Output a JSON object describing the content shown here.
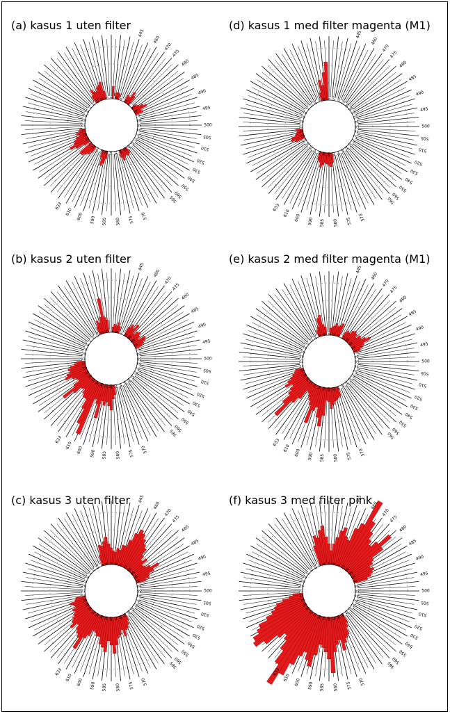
{
  "chart_data": [
    {
      "type": "polar-bar",
      "title": "(a) kasus 1 uten filter",
      "tick_labels": [
        "445",
        "460",
        "470",
        "475",
        "480",
        "485",
        "490",
        "495",
        "500",
        "505",
        "510",
        "520",
        "530",
        "540",
        "550",
        "560",
        "565",
        "570",
        "575",
        "580",
        "585",
        "590",
        "600",
        "610",
        "633"
      ],
      "inner_labels": [
        "72",
        "68",
        "66",
        "64",
        "62",
        "60",
        "58",
        "56",
        "54",
        "52",
        "50",
        "48",
        "46",
        "44",
        "42",
        "40",
        "38",
        "36",
        "34",
        "32",
        "30",
        "28",
        "26",
        "24",
        "22",
        "20",
        "18",
        "16",
        "14",
        "12",
        "10",
        "8",
        "6",
        "4",
        "2",
        "0"
      ],
      "values": [
        0,
        18,
        0,
        9,
        10,
        9,
        0,
        0,
        0,
        0,
        12,
        10,
        20,
        15,
        0,
        0,
        0,
        8,
        10,
        16,
        20,
        10,
        12,
        0,
        0,
        0,
        0,
        0,
        0,
        0,
        0,
        0,
        0,
        0,
        0,
        0,
        0,
        0,
        0,
        0,
        0,
        0,
        0,
        0,
        0,
        0,
        0,
        0,
        0,
        10,
        12,
        10,
        11,
        16,
        11,
        0,
        0,
        0,
        0,
        0,
        0,
        0,
        0,
        11,
        18,
        22,
        10,
        0,
        0,
        0,
        0,
        0,
        10,
        15,
        18,
        22,
        22,
        0,
        10,
        22,
        30,
        22,
        19,
        16,
        10,
        14,
        10,
        8,
        0,
        0,
        0,
        0,
        0,
        0,
        0,
        0,
        0,
        0,
        0,
        0,
        0,
        0,
        0,
        0,
        0,
        0,
        0,
        0,
        0,
        12,
        20,
        16,
        14,
        20,
        22,
        26,
        12,
        0
      ]
    },
    {
      "type": "polar-bar",
      "title": "(d) kasus 1 med filter magenta (M1)",
      "tick_labels": [
        "445",
        "460",
        "470",
        "475",
        "480",
        "485",
        "490",
        "495",
        "500",
        "505",
        "510",
        "520",
        "530",
        "540",
        "550",
        "560",
        "565",
        "570",
        "575",
        "580",
        "585",
        "590",
        "600",
        "610",
        "633"
      ],
      "inner_labels": [
        "72",
        "68",
        "66",
        "64",
        "62",
        "60",
        "58",
        "56",
        "54",
        "52",
        "50",
        "48",
        "46",
        "44",
        "42",
        "40",
        "38",
        "36",
        "34",
        "32",
        "30",
        "28",
        "26",
        "24",
        "22",
        "20",
        "18",
        "16",
        "14",
        "12",
        "10",
        "8",
        "6",
        "4",
        "2",
        "0"
      ],
      "values": [
        0,
        0,
        0,
        0,
        0,
        0,
        0,
        0,
        0,
        0,
        0,
        0,
        0,
        0,
        0,
        0,
        0,
        0,
        0,
        0,
        0,
        0,
        0,
        0,
        0,
        0,
        0,
        0,
        0,
        0,
        0,
        0,
        0,
        0,
        0,
        0,
        0,
        0,
        0,
        0,
        0,
        0,
        0,
        0,
        0,
        0,
        0,
        0,
        0,
        0,
        0,
        0,
        0,
        0,
        0,
        0,
        0,
        0,
        14,
        20,
        18,
        16,
        14,
        18,
        22,
        15,
        12,
        0,
        0,
        0,
        0,
        0,
        0,
        0,
        0,
        0,
        0,
        0,
        0,
        0,
        0,
        0,
        14,
        20,
        18,
        12,
        10,
        8,
        10,
        0,
        0,
        0,
        0,
        0,
        0,
        0,
        0,
        0,
        0,
        0,
        0,
        0,
        0,
        0,
        0,
        0,
        0,
        0,
        0,
        0,
        0,
        0,
        0,
        0,
        0,
        12,
        30,
        22,
        40,
        55,
        0
      ]
    },
    {
      "type": "polar-bar",
      "title": "(b) kasus 2 uten filter",
      "tick_labels": [
        "445",
        "460",
        "470",
        "475",
        "480",
        "485",
        "490",
        "495",
        "500",
        "505",
        "510",
        "520",
        "530",
        "540",
        "550",
        "560",
        "565",
        "570",
        "575",
        "580",
        "585",
        "590",
        "600",
        "610",
        "633"
      ],
      "inner_labels": [
        "72",
        "68",
        "66",
        "64",
        "62",
        "60",
        "58",
        "56",
        "54",
        "52",
        "50",
        "48",
        "46",
        "44",
        "42",
        "40",
        "38",
        "36",
        "34",
        "32",
        "30",
        "28",
        "26",
        "24",
        "22",
        "20",
        "18",
        "16",
        "14",
        "12",
        "10",
        "8",
        "6",
        "4",
        "2",
        "0"
      ],
      "values": [
        0,
        8,
        12,
        10,
        15,
        10,
        0,
        0,
        0,
        0,
        14,
        20,
        16,
        24,
        10,
        16,
        18,
        14,
        10,
        20,
        18,
        14,
        10,
        0,
        0,
        0,
        0,
        0,
        0,
        0,
        0,
        0,
        0,
        0,
        0,
        0,
        0,
        0,
        0,
        0,
        0,
        0,
        0,
        0,
        0,
        0,
        0,
        0,
        0,
        0,
        0,
        0,
        0,
        0,
        0,
        0,
        0,
        0,
        14,
        20,
        36,
        30,
        24,
        30,
        24,
        50,
        30,
        24,
        80,
        66,
        44,
        30,
        30,
        26,
        20,
        22,
        34,
        50,
        28,
        18,
        20,
        24,
        34,
        30,
        24,
        26,
        22,
        16,
        12,
        0,
        0,
        0,
        0,
        0,
        0,
        0,
        0,
        0,
        0,
        0,
        0,
        0,
        0,
        0,
        0,
        0,
        0,
        0,
        0,
        0,
        0,
        0,
        12,
        20,
        16,
        24,
        50,
        22,
        18,
        0
      ]
    },
    {
      "type": "polar-bar",
      "title": "(e) kasus 2 med filter magenta (M1)",
      "tick_labels": [
        "445",
        "460",
        "470",
        "475",
        "480",
        "485",
        "490",
        "495",
        "500",
        "505",
        "510",
        "520",
        "530",
        "540",
        "550",
        "560",
        "565",
        "570",
        "575",
        "580",
        "585",
        "590",
        "600",
        "610",
        "633"
      ],
      "inner_labels": [
        "72",
        "68",
        "66",
        "64",
        "62",
        "60",
        "58",
        "56",
        "54",
        "52",
        "50",
        "48",
        "46",
        "44",
        "42",
        "40",
        "38",
        "36",
        "34",
        "32",
        "30",
        "28",
        "26",
        "24",
        "22",
        "20",
        "18",
        "16",
        "14",
        "12",
        "10",
        "8",
        "6",
        "4",
        "2",
        "0"
      ],
      "values": [
        0,
        10,
        12,
        14,
        18,
        14,
        16,
        20,
        0,
        0,
        10,
        14,
        12,
        18,
        20,
        18,
        14,
        20,
        18,
        24,
        30,
        18,
        14,
        10,
        0,
        0,
        0,
        0,
        0,
        0,
        0,
        0,
        0,
        0,
        0,
        0,
        0,
        0,
        0,
        0,
        0,
        0,
        0,
        0,
        0,
        0,
        0,
        0,
        0,
        0,
        0,
        0,
        0,
        0,
        14,
        16,
        18,
        20,
        24,
        30,
        20,
        18,
        40,
        56,
        44,
        30,
        36,
        56,
        30,
        24,
        20,
        16,
        14,
        30,
        40,
        70,
        50,
        36,
        30,
        24,
        34,
        28,
        22,
        18,
        14,
        12,
        0,
        0,
        0,
        0,
        0,
        0,
        0,
        0,
        0,
        0,
        0,
        0,
        0,
        0,
        0,
        0,
        0,
        0,
        0,
        0,
        0,
        0,
        0,
        0,
        0,
        0,
        0,
        10,
        14,
        26,
        30,
        16,
        12,
        0
      ]
    },
    {
      "type": "polar-bar",
      "title": "(c) kasus 3 uten filter",
      "tick_labels": [
        "445",
        "460",
        "470",
        "475",
        "480",
        "485",
        "490",
        "495",
        "500",
        "505",
        "510",
        "520",
        "530",
        "540",
        "550",
        "560",
        "565",
        "570",
        "575",
        "580",
        "585",
        "590",
        "600",
        "610",
        "633"
      ],
      "inner_labels": [
        "72",
        "68",
        "66",
        "64",
        "62",
        "60",
        "58",
        "56",
        "54",
        "52",
        "50",
        "48",
        "46",
        "44",
        "42",
        "40",
        "38",
        "36",
        "34",
        "32",
        "30",
        "28",
        "26",
        "24",
        "22",
        "20",
        "18",
        "16",
        "14",
        "12",
        "10",
        "8",
        "6",
        "4",
        "2",
        "0"
      ],
      "values": [
        0,
        14,
        18,
        24,
        22,
        30,
        30,
        40,
        52,
        60,
        56,
        50,
        44,
        40,
        30,
        24,
        30,
        20,
        22,
        28,
        40,
        30,
        22,
        20,
        14,
        0,
        0,
        0,
        0,
        0,
        0,
        0,
        0,
        0,
        0,
        0,
        0,
        0,
        0,
        0,
        0,
        0,
        0,
        0,
        0,
        0,
        0,
        0,
        0,
        0,
        10,
        16,
        20,
        22,
        30,
        20,
        26,
        30,
        40,
        52,
        40,
        34,
        50,
        44,
        40,
        30,
        30,
        26,
        24,
        34,
        40,
        60,
        44,
        40,
        36,
        30,
        40,
        34,
        30,
        26,
        22,
        24,
        18,
        20,
        24,
        16,
        14,
        0,
        0,
        0,
        0,
        0,
        0,
        0,
        0,
        0,
        0,
        0,
        0,
        0,
        0,
        0,
        0,
        0,
        0,
        0,
        0,
        0,
        0,
        0,
        0,
        0,
        0,
        0,
        16,
        30,
        28,
        34,
        40,
        30,
        24,
        20,
        0
      ]
    },
    {
      "type": "polar-bar",
      "title": "(f) kasus 3 med filter pink",
      "tick_labels": [
        "445",
        "460",
        "470",
        "475",
        "480",
        "485",
        "490",
        "495",
        "500",
        "505",
        "510",
        "520",
        "530",
        "540",
        "550",
        "560",
        "565",
        "570",
        "575",
        "580",
        "585",
        "590",
        "600",
        "610",
        "633"
      ],
      "inner_labels": [
        "72",
        "68",
        "66",
        "64",
        "62",
        "60",
        "58",
        "56",
        "54",
        "52",
        "50",
        "48",
        "46",
        "44",
        "42",
        "40",
        "38",
        "36",
        "34",
        "32",
        "30",
        "28",
        "26",
        "24",
        "22",
        "20",
        "18",
        "16",
        "14",
        "12",
        "10",
        "8",
        "6",
        "4",
        "2",
        "0"
      ],
      "values": [
        0,
        20,
        30,
        40,
        50,
        56,
        44,
        40,
        60,
        70,
        110,
        80,
        66,
        56,
        50,
        60,
        80,
        60,
        40,
        36,
        30,
        34,
        30,
        26,
        20,
        0,
        0,
        0,
        0,
        0,
        0,
        0,
        0,
        0,
        0,
        0,
        0,
        0,
        0,
        0,
        0,
        0,
        0,
        0,
        0,
        0,
        0,
        0,
        0,
        0,
        14,
        20,
        30,
        34,
        40,
        50,
        34,
        40,
        50,
        80,
        60,
        50,
        44,
        40,
        56,
        74,
        66,
        56,
        64,
        80,
        100,
        120,
        90,
        70,
        56,
        50,
        60,
        80,
        94,
        90,
        80,
        74,
        60,
        50,
        44,
        40,
        30,
        20,
        14,
        0,
        0,
        0,
        0,
        0,
        0,
        0,
        0,
        0,
        0,
        0,
        0,
        0,
        0,
        0,
        0,
        0,
        0,
        0,
        0,
        0,
        0,
        0,
        0,
        0,
        30,
        44,
        40,
        50,
        56,
        40,
        30,
        20,
        14
      ]
    }
  ]
}
